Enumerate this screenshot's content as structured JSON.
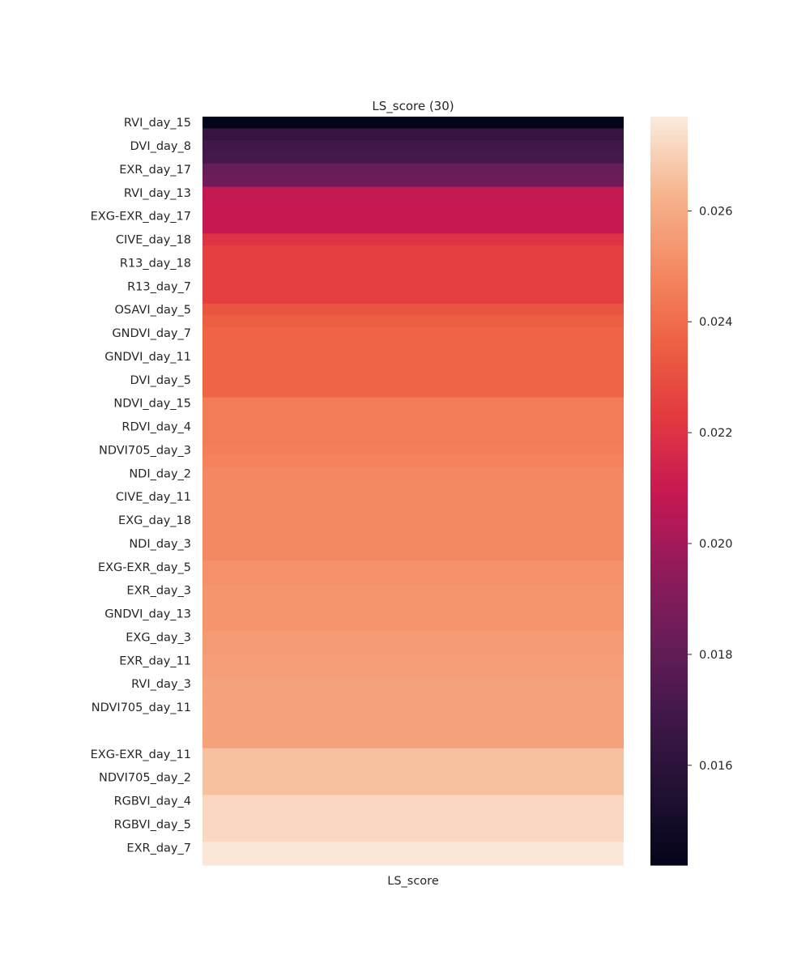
{
  "chart_data": {
    "type": "heatmap",
    "title": "LS_score (30)",
    "xlabel": "LS_score",
    "ylabel": "",
    "columns": [
      "LS_score"
    ],
    "colormap": "rocket",
    "colorbar_range": [
      0.0142,
      0.0277
    ],
    "colorbar_ticks": [
      {
        "value": 0.016,
        "label": "0.016"
      },
      {
        "value": 0.018,
        "label": "0.018"
      },
      {
        "value": 0.02,
        "label": "0.020"
      },
      {
        "value": 0.022,
        "label": "0.022"
      },
      {
        "value": 0.024,
        "label": "0.024"
      },
      {
        "value": 0.026,
        "label": "0.026"
      }
    ],
    "rows": [
      {
        "label": "RVI_day_15",
        "value": 0.0142
      },
      {
        "label": "",
        "value": 0.0164
      },
      {
        "label": "DVI_day_8",
        "value": 0.0168
      },
      {
        "label": "",
        "value": 0.017
      },
      {
        "label": "EXR_day_17",
        "value": 0.0182
      },
      {
        "label": "",
        "value": 0.0185
      },
      {
        "label": "RVI_day_13",
        "value": 0.0208
      },
      {
        "label": "",
        "value": 0.0209
      },
      {
        "label": "EXG-EXR_day_17",
        "value": 0.0209
      },
      {
        "label": "",
        "value": 0.0209
      },
      {
        "label": "CIVE_day_18",
        "value": 0.022
      },
      {
        "label": "",
        "value": 0.0225
      },
      {
        "label": "R13_day_18",
        "value": 0.0225
      },
      {
        "label": "",
        "value": 0.0225
      },
      {
        "label": "R13_day_7",
        "value": 0.0225
      },
      {
        "label": "",
        "value": 0.0225
      },
      {
        "label": "OSAVI_day_5",
        "value": 0.0232
      },
      {
        "label": "",
        "value": 0.0235
      },
      {
        "label": "GNDVI_day_7",
        "value": 0.0237
      },
      {
        "label": "",
        "value": 0.0237
      },
      {
        "label": "GNDVI_day_11",
        "value": 0.0237
      },
      {
        "label": "",
        "value": 0.0237
      },
      {
        "label": "DVI_day_5",
        "value": 0.0237
      },
      {
        "label": "",
        "value": 0.0237
      },
      {
        "label": "NDVI_day_15",
        "value": 0.0245
      },
      {
        "label": "",
        "value": 0.0245
      },
      {
        "label": "RDVI_day_4",
        "value": 0.0245
      },
      {
        "label": "",
        "value": 0.0245
      },
      {
        "label": "NDVI705_day_3",
        "value": 0.0246
      },
      {
        "label": "",
        "value": 0.0247
      },
      {
        "label": "NDI_day_2",
        "value": 0.0249
      },
      {
        "label": "",
        "value": 0.0249
      },
      {
        "label": "CIVE_day_11",
        "value": 0.0249
      },
      {
        "label": "",
        "value": 0.0249
      },
      {
        "label": "EXG_day_18",
        "value": 0.0249
      },
      {
        "label": "",
        "value": 0.0249
      },
      {
        "label": "NDI_day_3",
        "value": 0.0249
      },
      {
        "label": "",
        "value": 0.0249
      },
      {
        "label": "EXG-EXR_day_5",
        "value": 0.0252
      },
      {
        "label": "",
        "value": 0.0252
      },
      {
        "label": "EXR_day_3",
        "value": 0.0253
      },
      {
        "label": "",
        "value": 0.0253
      },
      {
        "label": "GNDVI_day_13",
        "value": 0.0253
      },
      {
        "label": "",
        "value": 0.0253
      },
      {
        "label": "EXG_day_3",
        "value": 0.0255
      },
      {
        "label": "",
        "value": 0.0255
      },
      {
        "label": "EXR_day_11",
        "value": 0.0256
      },
      {
        "label": "",
        "value": 0.0256
      },
      {
        "label": "RVI_day_3",
        "value": 0.0257
      },
      {
        "label": "",
        "value": 0.0257
      },
      {
        "label": "NDVI705_day_11",
        "value": 0.0257
      },
      {
        "label": "",
        "value": 0.0257
      },
      {
        "label": "",
        "value": 0.0257
      },
      {
        "label": "",
        "value": 0.0257
      },
      {
        "label": "EXG-EXR_day_11",
        "value": 0.0266
      },
      {
        "label": "",
        "value": 0.0266
      },
      {
        "label": "NDVI705_day_2",
        "value": 0.0266
      },
      {
        "label": "",
        "value": 0.0266
      },
      {
        "label": "RGBVI_day_4",
        "value": 0.0272
      },
      {
        "label": "",
        "value": 0.0272
      },
      {
        "label": "RGBVI_day_5",
        "value": 0.0272
      },
      {
        "label": "",
        "value": 0.0272
      },
      {
        "label": "EXR_day_7",
        "value": 0.0276
      },
      {
        "label": "",
        "value": 0.0276
      }
    ]
  }
}
